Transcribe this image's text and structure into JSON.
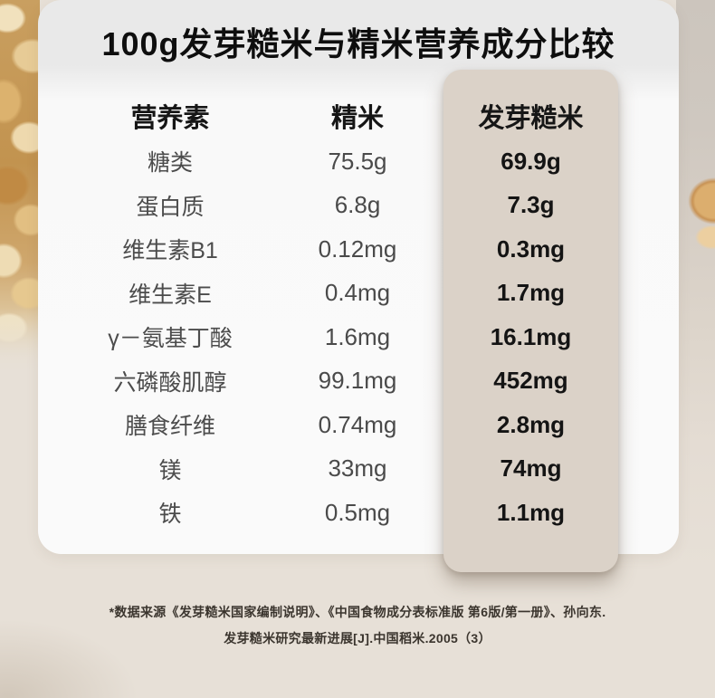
{
  "chart_data": {
    "type": "table",
    "title": "100g发芽糙米与精米营养成分比较",
    "columns": [
      "营养素",
      "精米",
      "发芽糙米"
    ],
    "highlighted_column": "发芽糙米",
    "rows": [
      [
        "糖类",
        "75.5g",
        "69.9g"
      ],
      [
        "蛋白质",
        "6.8g",
        "7.3g"
      ],
      [
        "维生素B1",
        "0.12mg",
        "0.3mg"
      ],
      [
        "维生素E",
        "0.4mg",
        "1.7mg"
      ],
      [
        "γ－氨基丁酸",
        "1.6mg",
        "16.1mg"
      ],
      [
        "六磷酸肌醇",
        "99.1mg",
        "452mg"
      ],
      [
        "膳食纤维",
        "0.74mg",
        "2.8mg"
      ],
      [
        "镁",
        "33mg",
        "74mg"
      ],
      [
        "铁",
        "0.5mg",
        "1.1mg"
      ]
    ],
    "footnote": "*数据来源《发芽糙米国家编制说明》、《中国食物成分表标准版 第6版/第一册》、孙向东.发芽糙米研究最新进展[J].中国稻米.2005（3）"
  },
  "footnote": {
    "line1": "*数据来源《发芽糙米国家编制说明》、《中国食物成分表标准版 第6版/第一册》、孙向东.",
    "line2": "发芽糙米研究最新进展[J].中国稻米.2005（3）"
  },
  "colors": {
    "page_background": "#e7e0d7",
    "card_background": "#fafafa",
    "title_band": "#e9e9e9",
    "highlight_column": "#dbd2c8",
    "title_text": "#0e0e0e",
    "label_text": "#4c4c4c",
    "value_text": "#4a4a4a",
    "highlight_value_text": "#141414",
    "footnote_text": "#3b352e"
  }
}
